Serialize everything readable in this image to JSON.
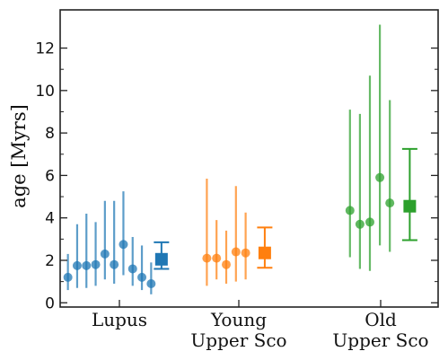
{
  "chart_data": {
    "type": "scatter",
    "title": "",
    "xlabel": "",
    "ylabel": "age [Myrs]",
    "ylim": [
      -0.2,
      13.8
    ],
    "yticks": [
      0,
      2,
      4,
      6,
      8,
      10,
      12
    ],
    "grid": false,
    "legend": "none",
    "groups": [
      {
        "label_lines": [
          "Lupus"
        ],
        "color": "#1f77b4",
        "points": [
          {
            "y": 1.2,
            "lo": 0.6,
            "hi": 2.3
          },
          {
            "y": 1.75,
            "lo": 0.7,
            "hi": 3.7
          },
          {
            "y": 1.75,
            "lo": 0.7,
            "hi": 4.2
          },
          {
            "y": 1.8,
            "lo": 0.8,
            "hi": 3.8
          },
          {
            "y": 2.3,
            "lo": 1.1,
            "hi": 4.8
          },
          {
            "y": 1.8,
            "lo": 0.9,
            "hi": 4.8
          },
          {
            "y": 2.75,
            "lo": 1.3,
            "hi": 5.25
          },
          {
            "y": 1.6,
            "lo": 0.8,
            "hi": 3.1
          },
          {
            "y": 1.2,
            "lo": 0.6,
            "hi": 2.7
          },
          {
            "y": 0.9,
            "lo": 0.4,
            "hi": 1.9
          }
        ],
        "summary": {
          "y": 2.05,
          "lo": 1.6,
          "hi": 2.85
        }
      },
      {
        "label_lines": [
          "Young",
          "Upper Sco"
        ],
        "color": "#ff7f0e",
        "points": [
          {
            "y": 2.1,
            "lo": 0.8,
            "hi": 5.85
          },
          {
            "y": 2.1,
            "lo": 1.1,
            "hi": 3.9
          },
          {
            "y": 1.8,
            "lo": 0.9,
            "hi": 3.4
          },
          {
            "y": 2.4,
            "lo": 1.0,
            "hi": 5.5
          },
          {
            "y": 2.35,
            "lo": 1.1,
            "hi": 4.25
          }
        ],
        "summary": {
          "y": 2.35,
          "lo": 1.65,
          "hi": 3.55
        }
      },
      {
        "label_lines": [
          "Old",
          "Upper Sco"
        ],
        "color": "#2ca02c",
        "points": [
          {
            "y": 4.35,
            "lo": 2.15,
            "hi": 9.1
          },
          {
            "y": 3.7,
            "lo": 1.6,
            "hi": 8.9
          },
          {
            "y": 3.8,
            "lo": 1.5,
            "hi": 10.7
          },
          {
            "y": 5.9,
            "lo": 2.7,
            "hi": 13.1
          },
          {
            "y": 4.7,
            "lo": 2.4,
            "hi": 9.55
          }
        ],
        "summary": {
          "y": 4.55,
          "lo": 2.95,
          "hi": 7.25
        }
      }
    ]
  }
}
